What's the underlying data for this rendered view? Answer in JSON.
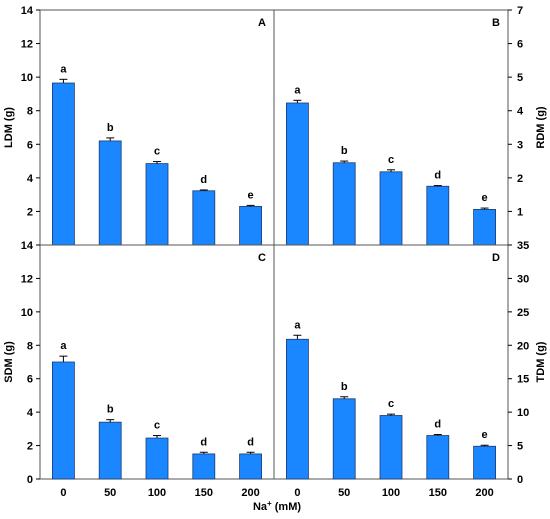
{
  "figure": {
    "xlabel_main": "Na",
    "xlabel_sup": "+",
    "xlabel_unit": " (mM)",
    "bar_color": "#1a86ff"
  },
  "chart_data": [
    {
      "type": "bar",
      "panel": "A",
      "categories": [
        "0",
        "50",
        "100",
        "150",
        "200"
      ],
      "values": [
        9.65,
        6.2,
        4.85,
        3.23,
        2.3
      ],
      "errors": [
        0.22,
        0.18,
        0.12,
        0.05,
        0.06
      ],
      "letters": [
        "a",
        "b",
        "c",
        "d",
        "e"
      ],
      "ylabel": "LDM (g)",
      "ylim": [
        0,
        14
      ],
      "yticks": [
        2,
        4,
        6,
        8,
        10,
        12,
        14
      ],
      "axis_side": "left",
      "grid": false
    },
    {
      "type": "bar",
      "panel": "B",
      "categories": [
        "0",
        "50",
        "100",
        "150",
        "200"
      ],
      "values": [
        4.23,
        2.45,
        2.18,
        1.75,
        1.06
      ],
      "errors": [
        0.08,
        0.05,
        0.06,
        0.02,
        0.04
      ],
      "letters": [
        "a",
        "b",
        "c",
        "d",
        "e"
      ],
      "ylabel": "RDM (g)",
      "ylim": [
        0,
        7
      ],
      "yticks": [
        1,
        2,
        3,
        4,
        5,
        6,
        7
      ],
      "axis_side": "right",
      "grid": false
    },
    {
      "type": "bar",
      "panel": "C",
      "categories": [
        "0",
        "50",
        "100",
        "150",
        "200"
      ],
      "values": [
        7.0,
        3.4,
        2.45,
        1.5,
        1.5
      ],
      "errors": [
        0.35,
        0.15,
        0.15,
        0.1,
        0.1
      ],
      "letters": [
        "a",
        "b",
        "c",
        "d",
        "d"
      ],
      "ylabel": "SDM (g)",
      "ylim": [
        0,
        14
      ],
      "yticks": [
        0,
        2,
        4,
        6,
        8,
        10,
        12,
        14
      ],
      "axis_side": "left",
      "grid": false
    },
    {
      "type": "bar",
      "panel": "D",
      "categories": [
        "0",
        "50",
        "100",
        "150",
        "200"
      ],
      "values": [
        20.9,
        12.0,
        9.5,
        6.5,
        4.9
      ],
      "errors": [
        0.6,
        0.3,
        0.2,
        0.15,
        0.15
      ],
      "letters": [
        "a",
        "b",
        "c",
        "d",
        "e"
      ],
      "ylabel": "TDM (g)",
      "ylim": [
        0,
        35
      ],
      "yticks": [
        0,
        5,
        10,
        15,
        20,
        25,
        30,
        35
      ],
      "axis_side": "right",
      "grid": false
    }
  ]
}
